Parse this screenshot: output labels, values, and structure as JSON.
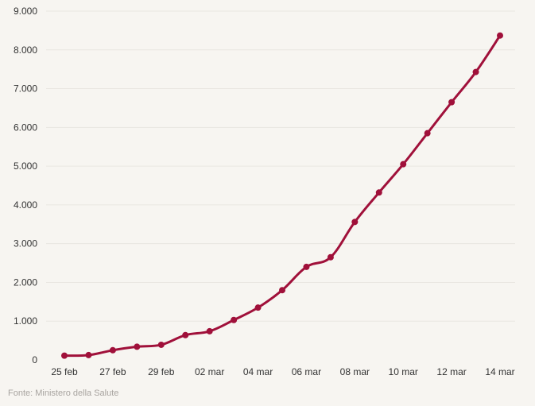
{
  "chart_data": {
    "type": "line",
    "x": [
      "25 feb",
      "26 feb",
      "27 feb",
      "28 feb",
      "29 feb",
      "01 mar",
      "02 mar",
      "03 mar",
      "04 mar",
      "05 mar",
      "06 mar",
      "07 mar",
      "08 mar",
      "09 mar",
      "10 mar",
      "11 mar",
      "12 mar",
      "13 mar",
      "14 mar"
    ],
    "x_tick_labels": [
      "25 feb",
      "27 feb",
      "29 feb",
      "02 mar",
      "04 mar",
      "06 mar",
      "08 mar",
      "10 mar",
      "12 mar",
      "14 mar"
    ],
    "series": [
      {
        "values": [
          110,
          125,
          250,
          340,
          390,
          640,
          740,
          1030,
          1350,
          1800,
          2400,
          2650,
          3560,
          4320,
          5050,
          5850,
          6650,
          7430,
          8370
        ]
      }
    ],
    "y_tick_labels": [
      "0",
      "1.000",
      "2.000",
      "3.000",
      "4.000",
      "5.000",
      "6.000",
      "7.000",
      "8.000",
      "9.000"
    ],
    "ylim": [
      0,
      9000
    ],
    "grid": true,
    "legend": "none",
    "line_color": "#a0103a",
    "grid_color": "#e9e6e1"
  },
  "source_label": "Fonte: Ministero della Salute"
}
